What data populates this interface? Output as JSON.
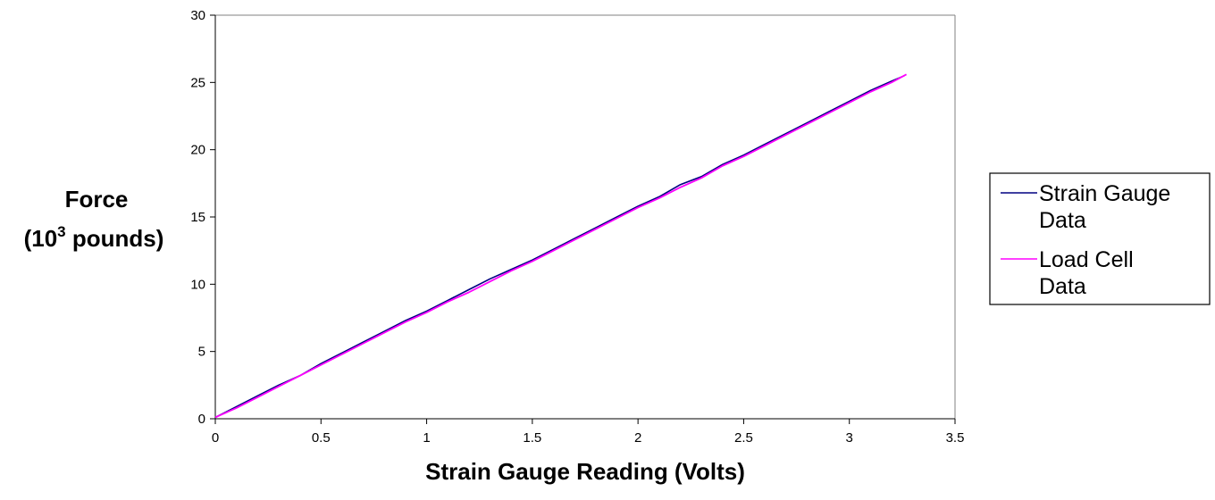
{
  "chart_data": {
    "type": "line",
    "title": "",
    "xlabel": "Strain Gauge Reading (Volts)",
    "ylabel": {
      "line1": "Force",
      "line2_prefix": "(10",
      "line2_sup": "3",
      "line2_suffix": " pounds)"
    },
    "xlim": [
      0,
      3.5
    ],
    "ylim": [
      0,
      30
    ],
    "xticks": [
      "0",
      "0.5",
      "1",
      "1.5",
      "2",
      "2.5",
      "3",
      "3.5"
    ],
    "yticks": [
      "0",
      "5",
      "10",
      "15",
      "20",
      "25",
      "30"
    ],
    "grid": false,
    "legend_position": "right",
    "series": [
      {
        "name": "Strain Gauge Data",
        "legend_lines": [
          "Strain Gauge",
          "Data"
        ],
        "color": "#000080",
        "x": [
          0,
          0.1,
          0.2,
          0.3,
          0.4,
          0.5,
          0.6,
          0.7,
          0.8,
          0.9,
          1.0,
          1.1,
          1.2,
          1.3,
          1.4,
          1.5,
          1.6,
          1.7,
          1.8,
          1.9,
          2.0,
          2.1,
          2.2,
          2.3,
          2.4,
          2.5,
          2.6,
          2.7,
          2.8,
          2.9,
          3.0,
          3.1,
          3.2,
          3.26
        ],
        "y": [
          0.1,
          0.9,
          1.7,
          2.5,
          3.2,
          4.1,
          4.9,
          5.7,
          6.5,
          7.3,
          8.0,
          8.8,
          9.6,
          10.4,
          11.1,
          11.8,
          12.6,
          13.4,
          14.2,
          15.0,
          15.8,
          16.5,
          17.4,
          18.0,
          18.9,
          19.6,
          20.4,
          21.2,
          22.0,
          22.8,
          23.6,
          24.4,
          25.1,
          25.5
        ]
      },
      {
        "name": "Load Cell Data",
        "legend_lines": [
          "Load Cell",
          "Data"
        ],
        "color": "#ff00ff",
        "x": [
          0,
          0.1,
          0.2,
          0.3,
          0.4,
          0.5,
          0.6,
          0.7,
          0.8,
          0.9,
          1.0,
          1.1,
          1.2,
          1.3,
          1.4,
          1.5,
          1.6,
          1.7,
          1.8,
          1.9,
          2.0,
          2.1,
          2.2,
          2.3,
          2.4,
          2.5,
          2.6,
          2.7,
          2.8,
          2.9,
          3.0,
          3.1,
          3.2,
          3.27
        ],
        "y": [
          0.1,
          0.8,
          1.6,
          2.4,
          3.2,
          4.0,
          4.8,
          5.6,
          6.4,
          7.2,
          7.9,
          8.7,
          9.4,
          10.2,
          11.0,
          11.7,
          12.5,
          13.3,
          14.1,
          14.9,
          15.7,
          16.4,
          17.2,
          17.9,
          18.8,
          19.5,
          20.3,
          21.1,
          21.9,
          22.7,
          23.5,
          24.3,
          25.0,
          25.6
        ]
      }
    ]
  }
}
